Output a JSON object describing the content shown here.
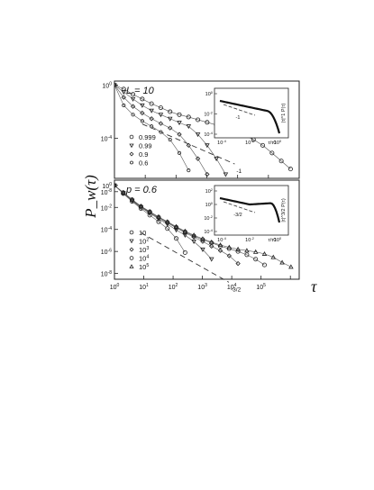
{
  "figure": {
    "ylabel": "P_w(τ)",
    "xlabel": "τ"
  },
  "chart_data": [
    {
      "type": "scatter",
      "panel_label": "L = 10",
      "xscale": "log",
      "yscale": "log",
      "xlim": [
        1,
        1000000
      ],
      "ylim": [
        1e-07,
        2
      ],
      "yticks": [
        {
          "v": 1,
          "label": "10^0"
        },
        {
          "v": 0.0001,
          "label": "10^-4"
        },
        {
          "v": 1e-08,
          "label": "10^-8"
        }
      ],
      "legend_position": "bottom-left",
      "series": [
        {
          "name": "0.999",
          "marker": "circle",
          "x": [
            1,
            2,
            4,
            8,
            16,
            32,
            64,
            128,
            256,
            512,
            1024,
            2048,
            4096,
            8192,
            16384,
            32768,
            65536,
            131072,
            262144,
            524288
          ],
          "y": [
            1,
            0.5,
            0.2,
            0.09,
            0.04,
            0.02,
            0.01,
            0.006,
            0.004,
            0.0025,
            0.0016,
            0.001,
            0.0006,
            0.00035,
            0.00018,
            8e-05,
            3e-05,
            8e-06,
            2e-06,
            5e-07
          ]
        },
        {
          "name": "0.99",
          "marker": "triangle-down",
          "x": [
            1,
            2,
            4,
            8,
            16,
            32,
            64,
            128,
            256,
            512,
            1024,
            2048,
            4096
          ],
          "y": [
            1,
            0.3,
            0.09,
            0.03,
            0.012,
            0.006,
            0.003,
            0.0015,
            0.0008,
            0.0002,
            3e-05,
            3e-06,
            2e-07
          ]
        },
        {
          "name": "0.9",
          "marker": "diamond",
          "x": [
            1,
            2,
            4,
            8,
            16,
            32,
            64,
            128,
            256,
            512,
            1024
          ],
          "y": [
            1,
            0.12,
            0.025,
            0.008,
            0.003,
            0.0013,
            0.0006,
            0.0002,
            3e-05,
            3e-06,
            2e-07
          ]
        },
        {
          "name": "0.6",
          "marker": "circle-small",
          "x": [
            1,
            2,
            4,
            8,
            16,
            32,
            64,
            128,
            256
          ],
          "y": [
            1,
            0.03,
            0.006,
            0.002,
            0.0008,
            0.0003,
            8e-05,
            8e-06,
            4e-07
          ]
        }
      ],
      "reference_line": {
        "slope": -1,
        "label": "-1"
      },
      "inset": {
        "ylabel": "|τ|^1 P(τ)",
        "xlabel": "τ/τ0",
        "yticks": [
          "10^0",
          "10^-2",
          "10^-4"
        ],
        "xticks": [
          "10^-4",
          "10^-2",
          "10^0"
        ],
        "slope_label": "-1"
      }
    },
    {
      "type": "scatter",
      "panel_label": "p = 0.6",
      "xscale": "log",
      "yscale": "log",
      "xlim": [
        1,
        2000000
      ],
      "ylim": [
        3e-09,
        3
      ],
      "yticks": [
        {
          "v": 1,
          "label": "10^0"
        },
        {
          "v": 0.01,
          "label": "10^-2"
        },
        {
          "v": 0.0001,
          "label": "10^-4"
        },
        {
          "v": 1e-06,
          "label": "10^-6"
        },
        {
          "v": 1e-08,
          "label": "10^-8"
        }
      ],
      "xticks": [
        {
          "v": 1,
          "label": "10^0"
        },
        {
          "v": 10,
          "label": "10^1"
        },
        {
          "v": 100,
          "label": "10^2"
        },
        {
          "v": 1000,
          "label": "10^3"
        },
        {
          "v": 10000,
          "label": "10^4"
        },
        {
          "v": 100000,
          "label": "10^5"
        }
      ],
      "legend_position": "bottom-left",
      "series": [
        {
          "name": "10",
          "marker": "circle",
          "x": [
            1,
            2,
            4,
            8,
            16,
            32,
            64,
            128,
            256
          ],
          "y": [
            1,
            0.18,
            0.035,
            0.008,
            0.002,
            0.0005,
            0.00012,
            1.5e-05,
            8e-07
          ]
        },
        {
          "name": "10^2",
          "marker": "triangle-down",
          "x": [
            1,
            2,
            4,
            8,
            16,
            32,
            64,
            128,
            256,
            512,
            1024,
            2048
          ],
          "y": [
            1,
            0.2,
            0.04,
            0.01,
            0.003,
            0.0009,
            0.0003,
            9e-05,
            3e-05,
            8e-06,
            1.5e-06,
            2e-07
          ]
        },
        {
          "name": "10^3",
          "marker": "diamond",
          "x": [
            1,
            2,
            4,
            8,
            16,
            32,
            64,
            128,
            256,
            512,
            1024,
            2048,
            4096,
            8192,
            16384
          ],
          "y": [
            1,
            0.21,
            0.045,
            0.011,
            0.0035,
            0.0011,
            0.0004,
            0.00014,
            5e-05,
            2e-05,
            8e-06,
            3e-06,
            1.2e-06,
            4e-07,
            8e-08
          ]
        },
        {
          "name": "10^4",
          "marker": "circle-open",
          "x": [
            1,
            2,
            4,
            8,
            16,
            32,
            64,
            128,
            256,
            512,
            1024,
            2048,
            4096,
            8192,
            16384,
            32768,
            65536,
            131072
          ],
          "y": [
            1,
            0.22,
            0.05,
            0.012,
            0.004,
            0.0013,
            0.00045,
            0.00016,
            6e-05,
            2.5e-05,
            1.2e-05,
            6e-06,
            3e-06,
            1.8e-06,
            1e-06,
            5e-07,
            2e-07,
            6e-08
          ]
        },
        {
          "name": "10^5",
          "marker": "triangle-up",
          "x": [
            1,
            2,
            4,
            8,
            16,
            32,
            64,
            128,
            256,
            512,
            1024,
            2048,
            4096,
            8192,
            16384,
            32768,
            65536,
            131072,
            262144,
            524288,
            1048576
          ],
          "y": [
            1,
            0.23,
            0.052,
            0.013,
            0.0042,
            0.0014,
            0.0005,
            0.00018,
            7e-05,
            3e-05,
            1.4e-05,
            7e-06,
            3.8e-06,
            2.4e-06,
            1.6e-06,
            1.2e-06,
            9e-07,
            6e-07,
            3e-07,
            1e-07,
            4e-08
          ]
        }
      ],
      "reference_line": {
        "slope": -1.5,
        "label": "-3/2"
      },
      "inset": {
        "ylabel": "|τ|^3/2 P(τ)",
        "xlabel": "τ/τ0",
        "yticks": [
          "10^2",
          "10^0",
          "10^-2",
          "10^-4"
        ],
        "xticks": [
          "10^-4",
          "10^-2",
          "10^0"
        ],
        "slope_label": "-3/2"
      }
    }
  ]
}
